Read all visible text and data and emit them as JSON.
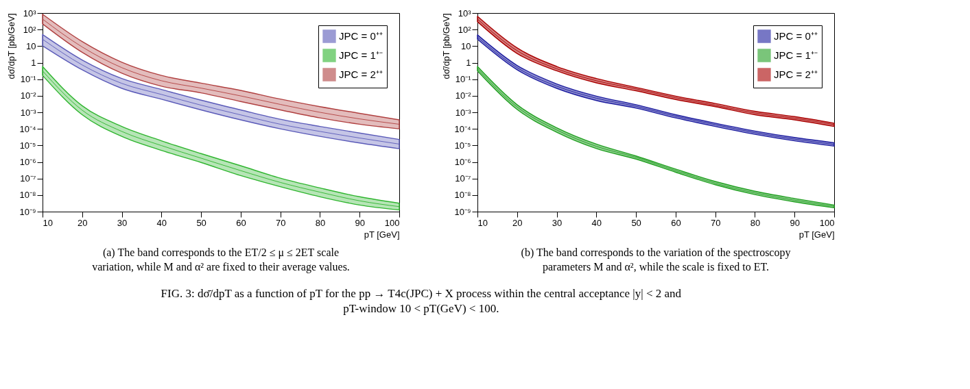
{
  "chart_data": [
    {
      "type": "line",
      "xlabel": "pT  [GeV]",
      "ylabel": "dσ̄/dpT  [pb/GeV]",
      "log": "y",
      "legend": "top right",
      "grid": false,
      "x": [
        10,
        20,
        30,
        40,
        50,
        60,
        70,
        80,
        90,
        100
      ],
      "xlim": [
        10,
        100
      ],
      "xticks": [
        10,
        20,
        30,
        40,
        50,
        60,
        70,
        80,
        90,
        100
      ],
      "ylim": [
        1e-09,
        1000
      ],
      "yticks": [
        {
          "value": 1000,
          "label": "10³"
        },
        {
          "value": 100,
          "label": "10²"
        },
        10,
        1,
        {
          "value": 0.1,
          "label": "10⁻¹"
        },
        {
          "value": 0.01,
          "label": "10⁻²"
        },
        {
          "value": 0.001,
          "label": "10⁻³"
        },
        {
          "value": 0.0001,
          "label": "10⁻⁴"
        },
        {
          "value": 1e-05,
          "label": "10⁻⁵"
        },
        {
          "value": 1e-06,
          "label": "10⁻⁶"
        },
        {
          "value": 1e-07,
          "label": "10⁻⁷"
        },
        {
          "value": 1e-08,
          "label": "10⁻⁸"
        },
        {
          "value": 1e-09,
          "label": "10⁻⁹"
        }
      ],
      "series": [
        {
          "name": "JPC = 0⁺⁺",
          "color": "#5a5ab8",
          "values": [
            26,
            0.73,
            0.056,
            0.012,
            0.0027,
            0.0007,
            0.00019,
            7e-05,
            2.8e-05,
            1.2e-05
          ],
          "lower": [
            10.5,
            0.37,
            0.028,
            0.0062,
            0.0014,
            0.00035,
            0.0001,
            3.5e-05,
            1.4e-05,
            6.3e-06
          ],
          "upper": [
            50,
            1.45,
            0.11,
            0.024,
            0.0054,
            0.0014,
            0.00038,
            0.00014,
            5.6e-05,
            2.3e-05
          ]
        },
        {
          "name": "JPC = 1⁺⁻",
          "color": "#2fb52f",
          "values": [
            0.32,
            0.00135,
            7e-05,
            9.8e-06,
            1.7e-06,
            3e-07,
            5.8e-08,
            1.5e-08,
            4.5e-09,
            2e-09
          ],
          "lower": [
            0.17,
            0.00072,
            3.5e-05,
            5e-06,
            9.3e-07,
            1.5e-07,
            3.2e-08,
            7.9e-09,
            2.5e-09,
            1.26e-09
          ],
          "upper": [
            0.59,
            0.0025,
            0.00014,
            1.9e-05,
            3.2e-06,
            5.9e-07,
            1.05e-07,
            2.7e-08,
            7.9e-09,
            3.2e-09
          ]
        },
        {
          "name": "JPC = 2⁺⁺",
          "color": "#b04040",
          "values": [
            430,
            8.9,
            0.5,
            0.081,
            0.029,
            0.0098,
            0.003,
            0.001,
            0.0004,
            0.00019
          ],
          "lower": [
            220,
            4.2,
            0.23,
            0.038,
            0.015,
            0.0045,
            0.0014,
            0.00046,
            0.00019,
            0.0001
          ],
          "upper": [
            850,
            19,
            1.07,
            0.17,
            0.058,
            0.021,
            0.0063,
            0.0022,
            0.00087,
            0.00035
          ]
        }
      ],
      "annotations": [
        "(a) The band corresponds to the ET/2 ≤ μ ≤ 2ET scale\nvariation, while M and α² are fixed to their average values."
      ]
    },
    {
      "type": "line",
      "xlabel": "pT  [GeV]",
      "ylabel": "dσ̄/dpT  [pb/GeV]",
      "log": "y",
      "legend": "top right",
      "grid": false,
      "x": [
        10,
        20,
        30,
        40,
        50,
        60,
        70,
        80,
        90,
        100
      ],
      "xlim": [
        10,
        100
      ],
      "xticks": [
        10,
        20,
        30,
        40,
        50,
        60,
        70,
        80,
        90,
        100
      ],
      "ylim": [
        1e-09,
        1000
      ],
      "yticks": [
        {
          "value": 1000,
          "label": "10³"
        },
        {
          "value": 100,
          "label": "10²"
        },
        10,
        1,
        {
          "value": 0.1,
          "label": "10⁻¹"
        },
        {
          "value": 0.01,
          "label": "10⁻²"
        },
        {
          "value": 0.001,
          "label": "10⁻³"
        },
        {
          "value": 0.0001,
          "label": "10⁻⁴"
        },
        {
          "value": 1e-05,
          "label": "10⁻⁵"
        },
        {
          "value": 1e-06,
          "label": "10⁻⁶"
        },
        {
          "value": 1e-07,
          "label": "10⁻⁷"
        },
        {
          "value": 1e-08,
          "label": "10⁻⁸"
        },
        {
          "value": 1e-09,
          "label": "10⁻⁹"
        }
      ],
      "series": [
        {
          "name": "JPC = 0⁺⁺",
          "color": "#1e1ea0",
          "values": [
            35,
            0.5,
            0.038,
            0.0071,
            0.0023,
            0.00058,
            0.00018,
            5.9e-05,
            2.4e-05,
            1.15e-05
          ],
          "lower": [
            26,
            0.37,
            0.028,
            0.0052,
            0.0018,
            0.00046,
            0.00014,
            4.7e-05,
            1.9e-05,
            9.1e-06
          ],
          "upper": [
            48,
            0.68,
            0.052,
            0.0095,
            0.0029,
            0.00072,
            0.00022,
            7.4e-05,
            3e-05,
            1.45e-05
          ]
        },
        {
          "name": "JPC = 1⁺⁻",
          "color": "#22a022",
          "values": [
            0.43,
            0.0021,
            8.6e-05,
            8.8e-06,
            1.9e-06,
            3e-07,
            5.2e-08,
            1.35e-08,
            4.9e-09,
            2.1e-09
          ],
          "lower": [
            0.32,
            0.0015,
            6.3e-05,
            6.5e-06,
            1.5e-06,
            2.4e-07,
            4.2e-08,
            1.07e-08,
            3.9e-09,
            1.7e-09
          ],
          "upper": [
            0.59,
            0.0029,
            0.000117,
            1.2e-05,
            2.3e-06,
            3.7e-07,
            6.6e-08,
            1.7e-08,
            6.2e-09,
            2.5e-09
          ]
        },
        {
          "name": "JPC = 2⁺⁺",
          "color": "#aa0000",
          "values": [
            430,
            5.3,
            0.43,
            0.081,
            0.026,
            0.0076,
            0.0027,
            0.00091,
            0.00044,
            0.00018
          ],
          "lower": [
            300,
            3.6,
            0.32,
            0.06,
            0.02,
            0.006,
            0.0022,
            0.00072,
            0.00035,
            0.00014
          ],
          "upper": [
            630,
            7.8,
            0.59,
            0.11,
            0.032,
            0.0095,
            0.0034,
            0.00115,
            0.00055,
            0.00022
          ]
        }
      ],
      "annotations": [
        "(b) The band corresponds to the variation of the spectroscopy\nparameters M and α², while the scale is fixed to ET.",
        "FIG. 3: dσ̄/dpT as a function of pT for the pp → T4c(JPC) + X process within the central acceptance |y| < 2 and\npT-window 10 < pT(GeV) < 100."
      ]
    }
  ]
}
